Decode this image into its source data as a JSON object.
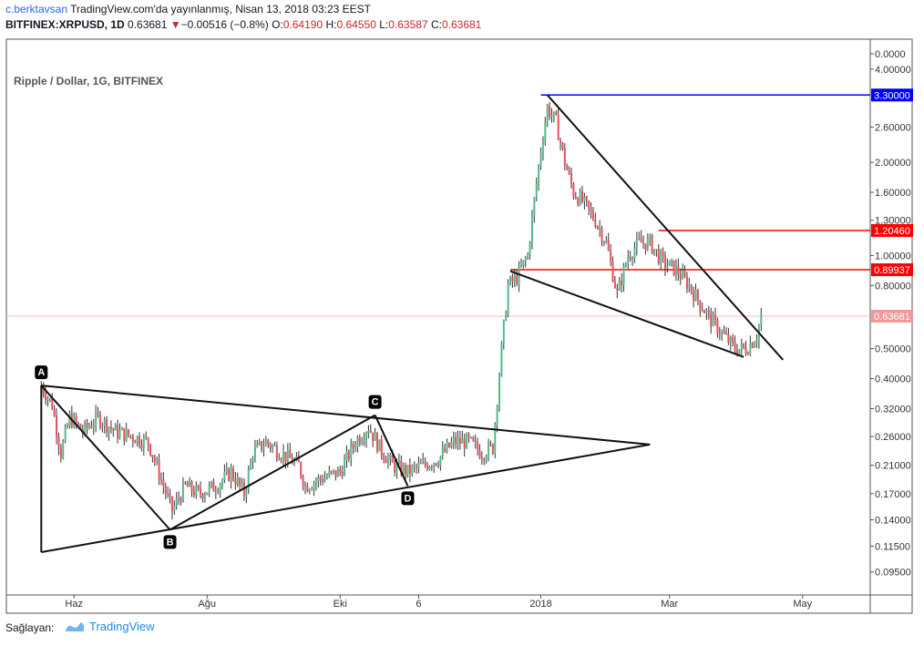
{
  "header": {
    "user": "c.berktavsan",
    "published": "TradingView.com'da yayınlanmış, Nisan 13, 2018 03:23 EEST",
    "symbol": "BITFINEX:XRPUSD, 1D",
    "last": "0.63681",
    "change": "−0.00516 (−0.8%)",
    "o_label": "O:",
    "o": "0.64190",
    "h_label": "H:",
    "h": "0.64550",
    "l_label": "L:",
    "l": "0.63587",
    "c_label": "C:",
    "c": "0.63681"
  },
  "footer": {
    "label": "Sağlayan:",
    "brand": "TradingView"
  },
  "colors": {
    "up": "#53b987",
    "down": "#eb4d5c",
    "blue_line": "#0000ff",
    "red_line": "#ff0000",
    "price_tag": "#ef9a9a",
    "brand": "#1e88e5"
  },
  "chart_data": {
    "type": "candlestick",
    "title": "Ripple / Dollar, 1G, BITFINEX",
    "y_scale": "log",
    "ylim": [
      0.08,
      5.0
    ],
    "xlim": [
      "2017-05-01",
      "2018-06-01"
    ],
    "y_ticks": [
      "0.0000",
      "4.00000",
      "2.60000",
      "2.00000",
      "1.60000",
      "1.30000",
      "1.00000",
      "0.80000",
      "0.50000",
      "0.40000",
      "0.32000",
      "0.26000",
      "0.21000",
      "0.17000",
      "0.14000",
      "0.11500",
      "0.09500"
    ],
    "x_ticks": [
      {
        "label": "Haz",
        "date": "2017-06-01"
      },
      {
        "label": "Ağu",
        "date": "2017-08-01"
      },
      {
        "label": "Eki",
        "date": "2017-10-01"
      },
      {
        "label": "6",
        "date": "2017-11-06"
      },
      {
        "label": "2018",
        "date": "2018-01-01"
      },
      {
        "label": "Mar",
        "date": "2018-03-01"
      },
      {
        "label": "May",
        "date": "2018-05-01"
      }
    ],
    "horizontal_levels": [
      {
        "value": 3.3,
        "label": "3.30000",
        "color": "#0000ff",
        "start": "2018-01-01"
      },
      {
        "value": 1.2046,
        "label": "1.20460",
        "color": "#ff0000",
        "start": "2018-02-24"
      },
      {
        "value": 0.89937,
        "label": "0.89937",
        "color": "#ff0000",
        "start": "2017-12-18"
      }
    ],
    "current_price": {
      "value": 0.63681,
      "label": "0.63681"
    },
    "pattern_points": [
      {
        "label": "A",
        "date": "2017-05-17",
        "value": 0.38
      },
      {
        "label": "B",
        "date": "2017-07-15",
        "value": 0.13
      },
      {
        "label": "C",
        "date": "2017-10-17",
        "value": 0.305
      },
      {
        "label": "D",
        "date": "2017-11-01",
        "value": 0.18
      }
    ],
    "trendlines": [
      {
        "from": {
          "date": "2017-05-17",
          "value": 0.38
        },
        "to": {
          "date": "2018-02-20",
          "value": 0.245
        }
      },
      {
        "from": {
          "date": "2017-05-17",
          "value": 0.11
        },
        "to": {
          "date": "2018-02-20",
          "value": 0.245
        }
      },
      {
        "from": {
          "date": "2017-05-17",
          "value": 0.38
        },
        "to": {
          "date": "2017-05-17",
          "value": 0.11
        }
      },
      {
        "from": {
          "date": "2017-05-17",
          "value": 0.38
        },
        "to": {
          "date": "2017-07-15",
          "value": 0.13
        }
      },
      {
        "from": {
          "date": "2017-07-15",
          "value": 0.13
        },
        "to": {
          "date": "2017-10-17",
          "value": 0.305
        }
      },
      {
        "from": {
          "date": "2017-10-17",
          "value": 0.305
        },
        "to": {
          "date": "2017-11-01",
          "value": 0.18
        }
      },
      {
        "from": {
          "date": "2018-01-04",
          "value": 3.3
        },
        "to": {
          "date": "2018-04-22",
          "value": 0.46
        }
      },
      {
        "from": {
          "date": "2017-12-18",
          "value": 0.89
        },
        "to": {
          "date": "2018-04-04",
          "value": 0.47
        }
      }
    ],
    "price_path": [
      [
        "2017-05-17",
        0.38
      ],
      [
        "2017-05-22",
        0.33
      ],
      [
        "2017-05-26",
        0.23
      ],
      [
        "2017-05-30",
        0.3
      ],
      [
        "2017-06-05",
        0.27
      ],
      [
        "2017-06-12",
        0.3
      ],
      [
        "2017-06-20",
        0.27
      ],
      [
        "2017-06-28",
        0.26
      ],
      [
        "2017-07-05",
        0.25
      ],
      [
        "2017-07-12",
        0.18
      ],
      [
        "2017-07-16",
        0.15
      ],
      [
        "2017-07-22",
        0.18
      ],
      [
        "2017-07-28",
        0.17
      ],
      [
        "2017-08-05",
        0.18
      ],
      [
        "2017-08-12",
        0.2
      ],
      [
        "2017-08-18",
        0.17
      ],
      [
        "2017-08-22",
        0.23
      ],
      [
        "2017-08-28",
        0.25
      ],
      [
        "2017-09-04",
        0.23
      ],
      [
        "2017-09-12",
        0.21
      ],
      [
        "2017-09-15",
        0.18
      ],
      [
        "2017-09-22",
        0.19
      ],
      [
        "2017-10-01",
        0.2
      ],
      [
        "2017-10-08",
        0.25
      ],
      [
        "2017-10-14",
        0.28
      ],
      [
        "2017-10-19",
        0.24
      ],
      [
        "2017-10-25",
        0.21
      ],
      [
        "2017-11-01",
        0.2
      ],
      [
        "2017-11-08",
        0.21
      ],
      [
        "2017-11-15",
        0.22
      ],
      [
        "2017-11-22",
        0.25
      ],
      [
        "2017-11-29",
        0.25
      ],
      [
        "2017-12-05",
        0.23
      ],
      [
        "2017-12-10",
        0.24
      ],
      [
        "2017-12-14",
        0.5
      ],
      [
        "2017-12-17",
        0.8
      ],
      [
        "2017-12-21",
        0.85
      ],
      [
        "2017-12-26",
        1.0
      ],
      [
        "2017-12-29",
        1.5
      ],
      [
        "2018-01-01",
        2.2
      ],
      [
        "2018-01-04",
        3.0
      ],
      [
        "2018-01-08",
        2.7
      ],
      [
        "2018-01-12",
        2.0
      ],
      [
        "2018-01-16",
        1.6
      ],
      [
        "2018-01-20",
        1.5
      ],
      [
        "2018-01-26",
        1.3
      ],
      [
        "2018-01-31",
        1.1
      ],
      [
        "2018-02-05",
        0.75
      ],
      [
        "2018-02-10",
        1.0
      ],
      [
        "2018-02-15",
        1.1
      ],
      [
        "2018-02-20",
        1.1
      ],
      [
        "2018-02-26",
        0.95
      ],
      [
        "2018-03-04",
        0.9
      ],
      [
        "2018-03-10",
        0.8
      ],
      [
        "2018-03-15",
        0.7
      ],
      [
        "2018-03-20",
        0.62
      ],
      [
        "2018-03-26",
        0.55
      ],
      [
        "2018-03-31",
        0.5
      ],
      [
        "2018-04-05",
        0.5
      ],
      [
        "2018-04-10",
        0.55
      ],
      [
        "2018-04-12",
        0.64
      ]
    ]
  }
}
